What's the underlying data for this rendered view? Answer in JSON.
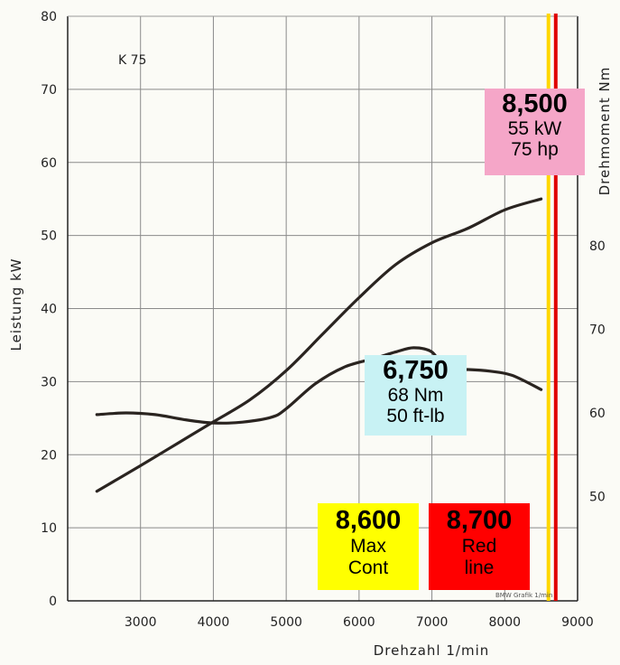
{
  "chart_data": {
    "type": "line",
    "model_label": "K 75",
    "xlabel": "Drehzahl 1/min",
    "ylabel_left": "Leistung kW",
    "ylabel_right": "Drehmoment Nm",
    "xlim": [
      2000,
      9000
    ],
    "ylim_left": [
      0,
      80
    ],
    "ylim_right": [
      37.5,
      107.5
    ],
    "x_ticks": [
      3000,
      4000,
      5000,
      6000,
      7000,
      8000,
      9000
    ],
    "y_ticks_left": [
      0,
      10,
      20,
      30,
      40,
      50,
      60,
      70,
      80
    ],
    "y_ticks_right": [
      50,
      60,
      70,
      80
    ],
    "series": [
      {
        "name": "Leistung",
        "axis": "left",
        "x": [
          2400,
          3000,
          3500,
          4000,
          4500,
          5000,
          5500,
          6000,
          6500,
          7000,
          7500,
          8000,
          8500
        ],
        "y": [
          15,
          18.5,
          21.5,
          24.5,
          27.5,
          31.5,
          36.5,
          41.5,
          46,
          49,
          51,
          53.5,
          55
        ]
      },
      {
        "name": "Drehmoment",
        "axis": "right",
        "x": [
          2400,
          2800,
          3200,
          3600,
          4000,
          4400,
          4800,
          5000,
          5400,
          5800,
          6200,
          6500,
          6750,
          7000,
          7200,
          7500,
          7800,
          8100,
          8500
        ],
        "y": [
          59.8,
          60.0,
          59.8,
          59.2,
          58.8,
          58.9,
          59.5,
          60.5,
          63.5,
          65.5,
          66.5,
          67.3,
          67.8,
          67.3,
          65.2,
          65.2,
          65.0,
          64.5,
          62.8
        ]
      }
    ],
    "reference_lines": [
      {
        "name": "max-cont-line",
        "x": 8600,
        "color": "#ffd700"
      },
      {
        "name": "red-line",
        "x": 8700,
        "color": "#e00000"
      }
    ],
    "annotations": {
      "peak_power": {
        "rpm": "8,500",
        "line1": "55 kW",
        "line2": "75 hp"
      },
      "peak_torque": {
        "rpm": "6,750",
        "line1": "68 Nm",
        "line2": "50 ft-lb"
      },
      "max_cont": {
        "rpm": "8,600",
        "line1": "Max",
        "line2": "Cont"
      },
      "red_line": {
        "rpm": "8,700",
        "line1": "Red",
        "line2": "line"
      }
    },
    "stamp": "BMW Grafik 1/min"
  }
}
